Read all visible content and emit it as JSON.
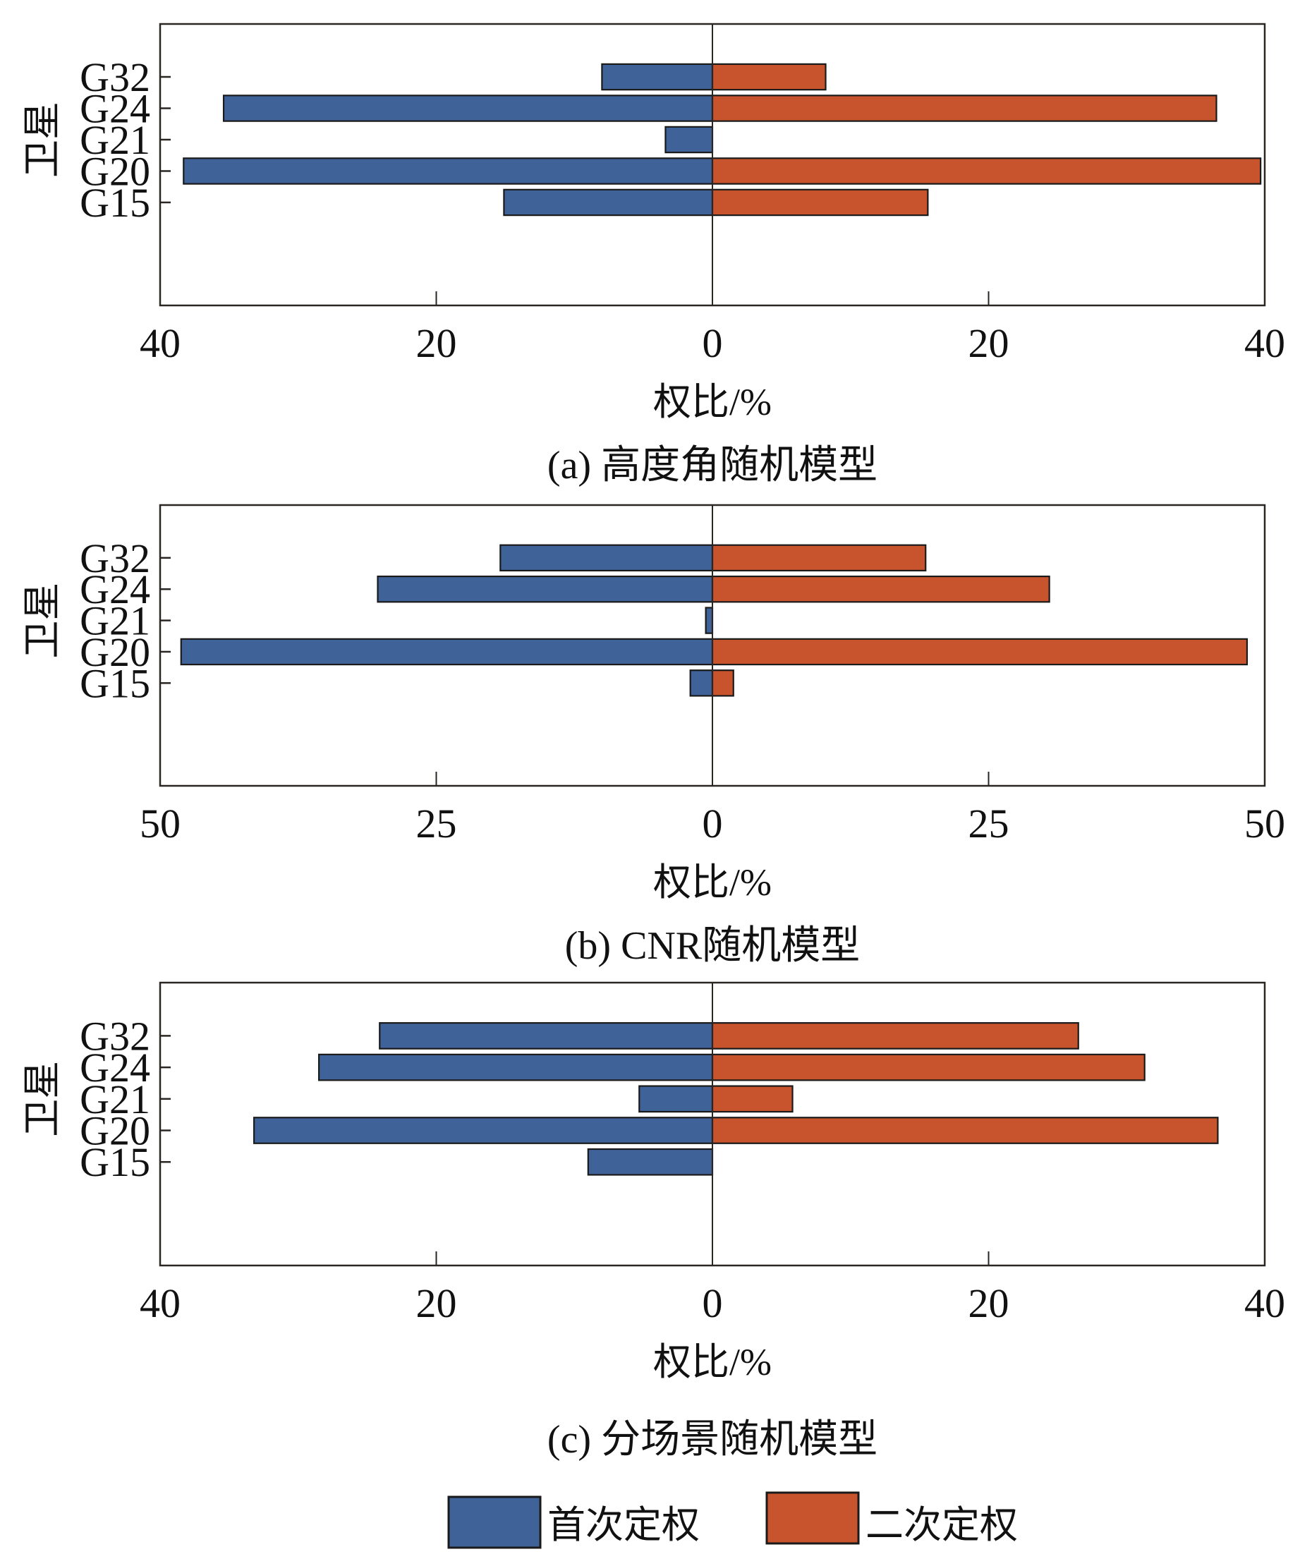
{
  "colors": {
    "first": "#3f6298",
    "second": "#c8542d",
    "axis": "#2a2622",
    "bar_edge": "#1a1a1a"
  },
  "legend": {
    "items": [
      {
        "label": "首次定权",
        "series": "first"
      },
      {
        "label": "二次定权",
        "series": "second"
      }
    ],
    "placement": "bottom-center"
  },
  "chart_data": [
    {
      "type": "bar",
      "orientation": "horizontal-diverging",
      "title": "(a) 高度角随机模型",
      "xlabel": "权比/%",
      "ylabel": "卫星",
      "categories": [
        "G32",
        "G24",
        "G21",
        "G20",
        "G15"
      ],
      "xlim": [
        -40,
        40
      ],
      "xticks": [
        -40,
        -20,
        0,
        20,
        40
      ],
      "xtick_labels": [
        "40",
        "20",
        "0",
        "20",
        "40"
      ],
      "grid": false,
      "series": [
        {
          "name": "首次定权",
          "key": "first",
          "side": "left",
          "values": [
            8,
            35.4,
            3.4,
            38.3,
            15.1
          ]
        },
        {
          "name": "二次定权",
          "key": "second",
          "side": "right",
          "values": [
            8.2,
            36.5,
            0,
            39.7,
            15.6
          ]
        }
      ]
    },
    {
      "type": "bar",
      "orientation": "horizontal-diverging",
      "title": "(b) CNR随机模型",
      "xlabel": "权比/%",
      "ylabel": "卫星",
      "categories": [
        "G32",
        "G24",
        "G21",
        "G20",
        "G15"
      ],
      "xlim": [
        -50,
        50
      ],
      "xticks": [
        -50,
        -25,
        0,
        25,
        50
      ],
      "xtick_labels": [
        "50",
        "25",
        "0",
        "25",
        "50"
      ],
      "grid": false,
      "series": [
        {
          "name": "首次定权",
          "key": "first",
          "side": "left",
          "values": [
            19.2,
            30.3,
            0.6,
            48.1,
            2.0
          ]
        },
        {
          "name": "二次定权",
          "key": "second",
          "side": "right",
          "values": [
            19.3,
            30.5,
            0,
            48.4,
            1.9
          ]
        }
      ]
    },
    {
      "type": "bar",
      "orientation": "horizontal-diverging",
      "title": "(c) 分场景随机模型",
      "xlabel": "权比/%",
      "ylabel": "卫星",
      "categories": [
        "G32",
        "G24",
        "G21",
        "G20",
        "G15"
      ],
      "xlim": [
        -40,
        40
      ],
      "xticks": [
        -40,
        -20,
        0,
        20,
        40
      ],
      "xtick_labels": [
        "40",
        "20",
        "0",
        "20",
        "40"
      ],
      "grid": false,
      "series": [
        {
          "name": "首次定权",
          "key": "first",
          "side": "left",
          "values": [
            24.1,
            28.5,
            5.3,
            33.2,
            9.0
          ]
        },
        {
          "name": "二次定权",
          "key": "second",
          "side": "right",
          "values": [
            26.5,
            31.3,
            5.8,
            36.6,
            0
          ]
        }
      ]
    }
  ]
}
